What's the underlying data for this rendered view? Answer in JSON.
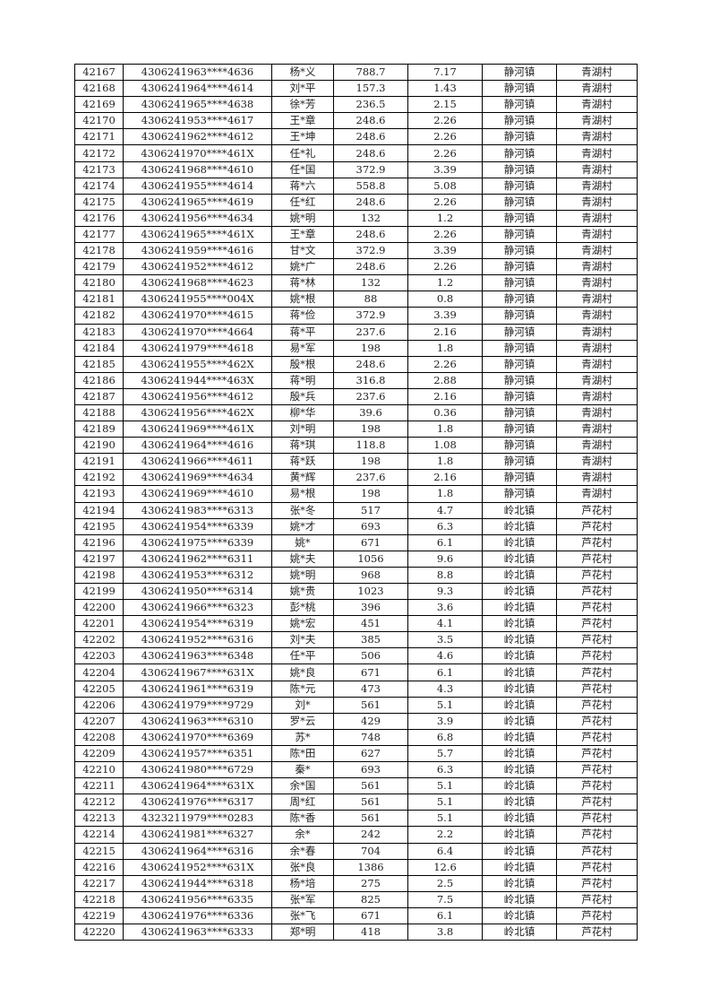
{
  "rows": [
    [
      "42167",
      "4306241963****4636",
      "杨*义",
      "788.7",
      "7.17",
      "静河镇",
      "青湖村"
    ],
    [
      "42168",
      "4306241964****4614",
      "刘*平",
      "157.3",
      "1.43",
      "静河镇",
      "青湖村"
    ],
    [
      "42169",
      "4306241965****4638",
      "徐*芳",
      "236.5",
      "2.15",
      "静河镇",
      "青湖村"
    ],
    [
      "42170",
      "4306241953****4617",
      "王*章",
      "248.6",
      "2.26",
      "静河镇",
      "青湖村"
    ],
    [
      "42171",
      "4306241962****4612",
      "王*坤",
      "248.6",
      "2.26",
      "静河镇",
      "青湖村"
    ],
    [
      "42172",
      "4306241970****461X",
      "任*礼",
      "248.6",
      "2.26",
      "静河镇",
      "青湖村"
    ],
    [
      "42173",
      "4306241968****4610",
      "任*国",
      "372.9",
      "3.39",
      "静河镇",
      "青湖村"
    ],
    [
      "42174",
      "4306241955****4614",
      "蒋*六",
      "558.8",
      "5.08",
      "静河镇",
      "青湖村"
    ],
    [
      "42175",
      "4306241965****4619",
      "任*红",
      "248.6",
      "2.26",
      "静河镇",
      "青湖村"
    ],
    [
      "42176",
      "4306241956****4634",
      "姚*明",
      "132",
      "1.2",
      "静河镇",
      "青湖村"
    ],
    [
      "42177",
      "4306241965****461X",
      "王*章",
      "248.6",
      "2.26",
      "静河镇",
      "青湖村"
    ],
    [
      "42178",
      "4306241959****4616",
      "甘*文",
      "372.9",
      "3.39",
      "静河镇",
      "青湖村"
    ],
    [
      "42179",
      "4306241952****4612",
      "姚*广",
      "248.6",
      "2.26",
      "静河镇",
      "青湖村"
    ],
    [
      "42180",
      "4306241968****4623",
      "蒋*林",
      "132",
      "1.2",
      "静河镇",
      "青湖村"
    ],
    [
      "42181",
      "4306241955****004X",
      "姚*根",
      "88",
      "0.8",
      "静河镇",
      "青湖村"
    ],
    [
      "42182",
      "4306241970****4615",
      "蒋*俭",
      "372.9",
      "3.39",
      "静河镇",
      "青湖村"
    ],
    [
      "42183",
      "4306241970****4664",
      "蒋*平",
      "237.6",
      "2.16",
      "静河镇",
      "青湖村"
    ],
    [
      "42184",
      "4306241979****4618",
      "易*军",
      "198",
      "1.8",
      "静河镇",
      "青湖村"
    ],
    [
      "42185",
      "4306241955****462X",
      "殷*根",
      "248.6",
      "2.26",
      "静河镇",
      "青湖村"
    ],
    [
      "42186",
      "4306241944****463X",
      "蒋*明",
      "316.8",
      "2.88",
      "静河镇",
      "青湖村"
    ],
    [
      "42187",
      "4306241956****4612",
      "殷*兵",
      "237.6",
      "2.16",
      "静河镇",
      "青湖村"
    ],
    [
      "42188",
      "4306241956****462X",
      "柳*华",
      "39.6",
      "0.36",
      "静河镇",
      "青湖村"
    ],
    [
      "42189",
      "4306241969****461X",
      "刘*明",
      "198",
      "1.8",
      "静河镇",
      "青湖村"
    ],
    [
      "42190",
      "4306241964****4616",
      "蒋*琪",
      "118.8",
      "1.08",
      "静河镇",
      "青湖村"
    ],
    [
      "42191",
      "4306241966****4611",
      "蒋*跃",
      "198",
      "1.8",
      "静河镇",
      "青湖村"
    ],
    [
      "42192",
      "4306241969****4634",
      "黄*辉",
      "237.6",
      "2.16",
      "静河镇",
      "青湖村"
    ],
    [
      "42193",
      "4306241969****4610",
      "易*根",
      "198",
      "1.8",
      "静河镇",
      "青湖村"
    ],
    [
      "42194",
      "4306241983****6313",
      "张*冬",
      "517",
      "4.7",
      "岭北镇",
      "芦花村"
    ],
    [
      "42195",
      "4306241954****6339",
      "姚*才",
      "693",
      "6.3",
      "岭北镇",
      "芦花村"
    ],
    [
      "42196",
      "4306241975****6339",
      "姚*",
      "671",
      "6.1",
      "岭北镇",
      "芦花村"
    ],
    [
      "42197",
      "4306241962****6311",
      "姚*夫",
      "1056",
      "9.6",
      "岭北镇",
      "芦花村"
    ],
    [
      "42198",
      "4306241953****6312",
      "姚*明",
      "968",
      "8.8",
      "岭北镇",
      "芦花村"
    ],
    [
      "42199",
      "4306241950****6314",
      "姚*贵",
      "1023",
      "9.3",
      "岭北镇",
      "芦花村"
    ],
    [
      "42200",
      "4306241966****6323",
      "彭*桃",
      "396",
      "3.6",
      "岭北镇",
      "芦花村"
    ],
    [
      "42201",
      "4306241954****6319",
      "姚*宏",
      "451",
      "4.1",
      "岭北镇",
      "芦花村"
    ],
    [
      "42202",
      "4306241952****6316",
      "刘*夫",
      "385",
      "3.5",
      "岭北镇",
      "芦花村"
    ],
    [
      "42203",
      "4306241963****6348",
      "任*平",
      "506",
      "4.6",
      "岭北镇",
      "芦花村"
    ],
    [
      "42204",
      "4306241967****631X",
      "姚*良",
      "671",
      "6.1",
      "岭北镇",
      "芦花村"
    ],
    [
      "42205",
      "4306241961****6319",
      "陈*元",
      "473",
      "4.3",
      "岭北镇",
      "芦花村"
    ],
    [
      "42206",
      "4306241979****9729",
      "刘*",
      "561",
      "5.1",
      "岭北镇",
      "芦花村"
    ],
    [
      "42207",
      "4306241963****6310",
      "罗*云",
      "429",
      "3.9",
      "岭北镇",
      "芦花村"
    ],
    [
      "42208",
      "4306241970****6369",
      "苏*",
      "748",
      "6.8",
      "岭北镇",
      "芦花村"
    ],
    [
      "42209",
      "4306241957****6351",
      "陈*田",
      "627",
      "5.7",
      "岭北镇",
      "芦花村"
    ],
    [
      "42210",
      "4306241980****6729",
      "秦*",
      "693",
      "6.3",
      "岭北镇",
      "芦花村"
    ],
    [
      "42211",
      "4306241964****631X",
      "余*国",
      "561",
      "5.1",
      "岭北镇",
      "芦花村"
    ],
    [
      "42212",
      "4306241976****6317",
      "周*红",
      "561",
      "5.1",
      "岭北镇",
      "芦花村"
    ],
    [
      "42213",
      "4323211979****0283",
      "陈*香",
      "561",
      "5.1",
      "岭北镇",
      "芦花村"
    ],
    [
      "42214",
      "4306241981****6327",
      "余*",
      "242",
      "2.2",
      "岭北镇",
      "芦花村"
    ],
    [
      "42215",
      "4306241964****6316",
      "余*春",
      "704",
      "6.4",
      "岭北镇",
      "芦花村"
    ],
    [
      "42216",
      "4306241952****631X",
      "张*良",
      "1386",
      "12.6",
      "岭北镇",
      "芦花村"
    ],
    [
      "42217",
      "4306241944****6318",
      "杨*培",
      "275",
      "2.5",
      "岭北镇",
      "芦花村"
    ],
    [
      "42218",
      "4306241956****6335",
      "张*军",
      "825",
      "7.5",
      "岭北镇",
      "芦花村"
    ],
    [
      "42219",
      "4306241976****6336",
      "张*飞",
      "671",
      "6.1",
      "岭北镇",
      "芦花村"
    ],
    [
      "42220",
      "4306241963****6333",
      "郑*明",
      "418",
      "3.8",
      "岭北镇",
      "芦花村"
    ]
  ]
}
